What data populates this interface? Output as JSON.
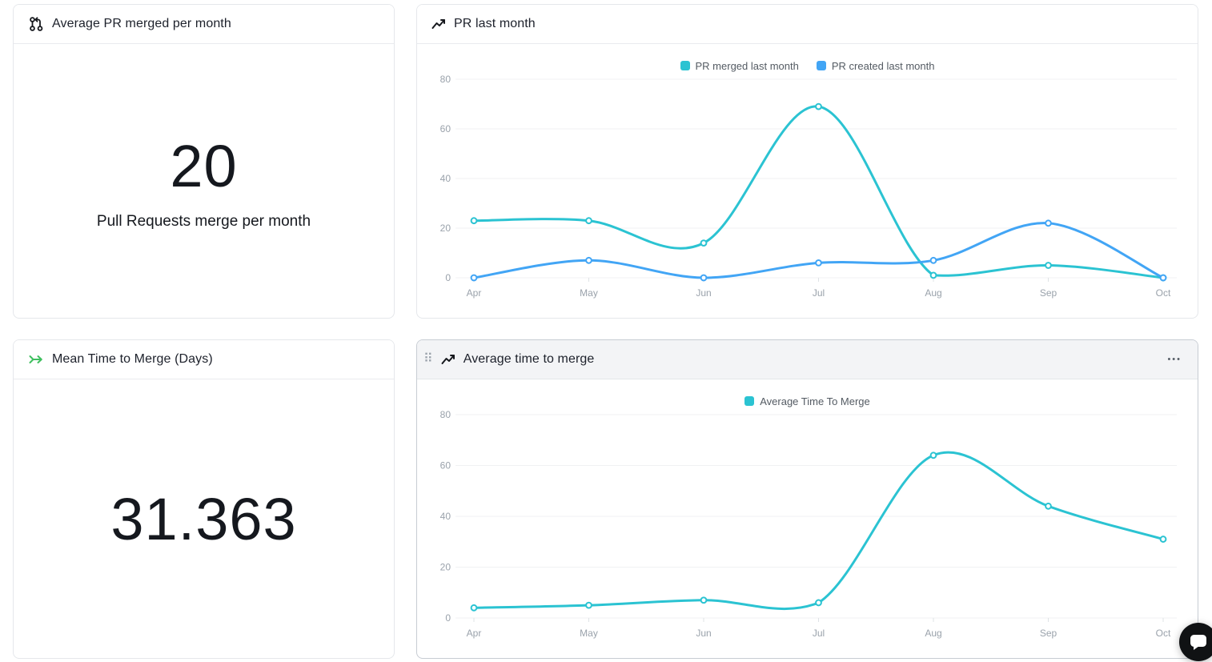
{
  "cards": {
    "avg_pr_merged": {
      "title": "Average PR merged per month",
      "value": "20",
      "label": "Pull Requests merge per month"
    },
    "pr_last_month": {
      "title": "PR last month"
    },
    "mean_time_to_merge": {
      "title": "Mean Time to Merge (Days)",
      "value": "31.363"
    },
    "avg_time_to_merge": {
      "title": "Average time to merge"
    }
  },
  "icons": {
    "drag_handle": "⠿",
    "menu": "•••"
  },
  "colors": {
    "teal": "#2bc3d2",
    "blue": "#42a5f5",
    "green": "#3fbf5f",
    "grid": "#f0f1f3",
    "tick_label": "#9aa2ab"
  },
  "chart_data": [
    {
      "id": "pr_last_month",
      "type": "line",
      "title": "PR last month",
      "categories": [
        "Apr",
        "May",
        "Jun",
        "Jul",
        "Aug",
        "Sep",
        "Oct"
      ],
      "series": [
        {
          "name": "PR merged last month",
          "color": "#2bc3d2",
          "values": [
            23,
            23,
            14,
            69,
            1,
            5,
            0
          ]
        },
        {
          "name": "PR created last month",
          "color": "#42a5f5",
          "values": [
            0,
            7,
            0,
            6,
            7,
            22,
            0
          ]
        }
      ],
      "ylim": [
        0,
        80
      ],
      "yticks": [
        0,
        20,
        40,
        60,
        80
      ],
      "legend_position": "top",
      "grid": true
    },
    {
      "id": "avg_time_to_merge",
      "type": "line",
      "title": "Average time to merge",
      "categories": [
        "Apr",
        "May",
        "Jun",
        "Jul",
        "Aug",
        "Sep",
        "Oct"
      ],
      "series": [
        {
          "name": "Average Time To Merge",
          "color": "#2bc3d2",
          "values": [
            4,
            5,
            7,
            6,
            64,
            44,
            31
          ]
        }
      ],
      "ylim": [
        0,
        80
      ],
      "yticks": [
        0,
        20,
        40,
        60,
        80
      ],
      "legend_position": "top",
      "grid": true
    }
  ]
}
